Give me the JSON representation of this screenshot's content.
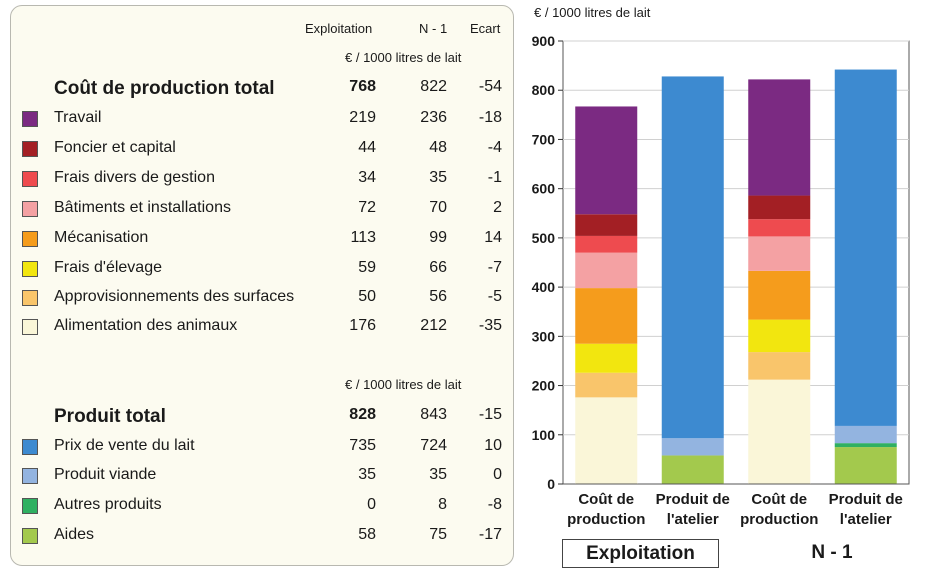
{
  "table": {
    "col_headers": [
      "Exploitation",
      "N - 1",
      "Ecart"
    ],
    "unit_label_top": "€ / 1000 litres de lait",
    "unit_label_bottom": "€ / 1000 litres de lait",
    "cost_section": {
      "label": "Coût de production total",
      "values": [
        "768",
        "822",
        "-54"
      ],
      "rows": [
        {
          "label": "Travail",
          "color": "#7b2a82",
          "values": [
            "219",
            "236",
            "-18"
          ]
        },
        {
          "label": "Foncier et capital",
          "color": "#a31f24",
          "values": [
            "44",
            "48",
            "-4"
          ]
        },
        {
          "label": "Frais divers de gestion",
          "color": "#ee4b4f",
          "values": [
            "34",
            "35",
            "-1"
          ]
        },
        {
          "label": "Bâtiments et installations",
          "color": "#f4a1a3",
          "values": [
            "72",
            "70",
            "2"
          ]
        },
        {
          "label": "Mécanisation",
          "color": "#f59c1c",
          "values": [
            "113",
            "99",
            "14"
          ]
        },
        {
          "label": "Frais d'élevage",
          "color": "#f2e60f",
          "values": [
            "59",
            "66",
            "-7"
          ]
        },
        {
          "label": "Approvisionnements des surfaces",
          "color": "#f9c56b",
          "values": [
            "50",
            "56",
            "-5"
          ]
        },
        {
          "label": "Alimentation des animaux",
          "color": "#faf6d8",
          "values": [
            "176",
            "212",
            "-35"
          ]
        }
      ]
    },
    "product_section": {
      "label": "Produit total",
      "values": [
        "828",
        "843",
        "-15"
      ],
      "rows": [
        {
          "label": "Prix de vente du lait",
          "color": "#3d8ad0",
          "values": [
            "735",
            "724",
            "10"
          ]
        },
        {
          "label": "Produit viande",
          "color": "#93b4e0",
          "values": [
            "35",
            "35",
            "0"
          ]
        },
        {
          "label": "Autres produits",
          "color": "#2fb061",
          "values": [
            "0",
            "8",
            "-8"
          ]
        },
        {
          "label": "Aides",
          "color": "#a3c94d",
          "values": [
            "58",
            "75",
            "-17"
          ]
        }
      ]
    }
  },
  "chart_data": {
    "type": "bar",
    "stacked": true,
    "ylabel": "€ / 1000 litres de lait",
    "ylim": [
      0,
      900
    ],
    "yticks": [
      0,
      100,
      200,
      300,
      400,
      500,
      600,
      700,
      800,
      900
    ],
    "grid": true,
    "categories": [
      "Coût de\nproduction",
      "Produit de\nl'atelier",
      "Coût de\nproduction",
      "Produit de\nl'atelier"
    ],
    "groups": [
      "Exploitation",
      "N - 1"
    ],
    "bars": [
      {
        "group": "Exploitation",
        "category": "Coût de production",
        "stack": [
          {
            "name": "Alimentation des animaux",
            "value": 176,
            "color": "#faf6d8"
          },
          {
            "name": "Approvisionnements des surfaces",
            "value": 50,
            "color": "#f9c56b"
          },
          {
            "name": "Frais d'élevage",
            "value": 59,
            "color": "#f2e60f"
          },
          {
            "name": "Mécanisation",
            "value": 113,
            "color": "#f59c1c"
          },
          {
            "name": "Bâtiments et installations",
            "value": 72,
            "color": "#f4a1a3"
          },
          {
            "name": "Frais divers de gestion",
            "value": 34,
            "color": "#ee4b4f"
          },
          {
            "name": "Foncier et capital",
            "value": 44,
            "color": "#a31f24"
          },
          {
            "name": "Travail",
            "value": 219,
            "color": "#7b2a82"
          }
        ]
      },
      {
        "group": "Exploitation",
        "category": "Produit de l'atelier",
        "stack": [
          {
            "name": "Aides",
            "value": 58,
            "color": "#a3c94d"
          },
          {
            "name": "Autres produits",
            "value": 0,
            "color": "#2fb061"
          },
          {
            "name": "Produit viande",
            "value": 35,
            "color": "#93b4e0"
          },
          {
            "name": "Prix de vente du lait",
            "value": 735,
            "color": "#3d8ad0"
          }
        ]
      },
      {
        "group": "N - 1",
        "category": "Coût de production",
        "stack": [
          {
            "name": "Alimentation des animaux",
            "value": 212,
            "color": "#faf6d8"
          },
          {
            "name": "Approvisionnements des surfaces",
            "value": 56,
            "color": "#f9c56b"
          },
          {
            "name": "Frais d'élevage",
            "value": 66,
            "color": "#f2e60f"
          },
          {
            "name": "Mécanisation",
            "value": 99,
            "color": "#f59c1c"
          },
          {
            "name": "Bâtiments et installations",
            "value": 70,
            "color": "#f4a1a3"
          },
          {
            "name": "Frais divers de gestion",
            "value": 35,
            "color": "#ee4b4f"
          },
          {
            "name": "Foncier et capital",
            "value": 48,
            "color": "#a31f24"
          },
          {
            "name": "Travail",
            "value": 236,
            "color": "#7b2a82"
          }
        ]
      },
      {
        "group": "N - 1",
        "category": "Produit de l'atelier",
        "stack": [
          {
            "name": "Aides",
            "value": 75,
            "color": "#a3c94d"
          },
          {
            "name": "Autres produits",
            "value": 8,
            "color": "#2fb061"
          },
          {
            "name": "Produit viande",
            "value": 35,
            "color": "#93b4e0"
          },
          {
            "name": "Prix de vente du lait",
            "value": 724,
            "color": "#3d8ad0"
          }
        ]
      }
    ]
  }
}
